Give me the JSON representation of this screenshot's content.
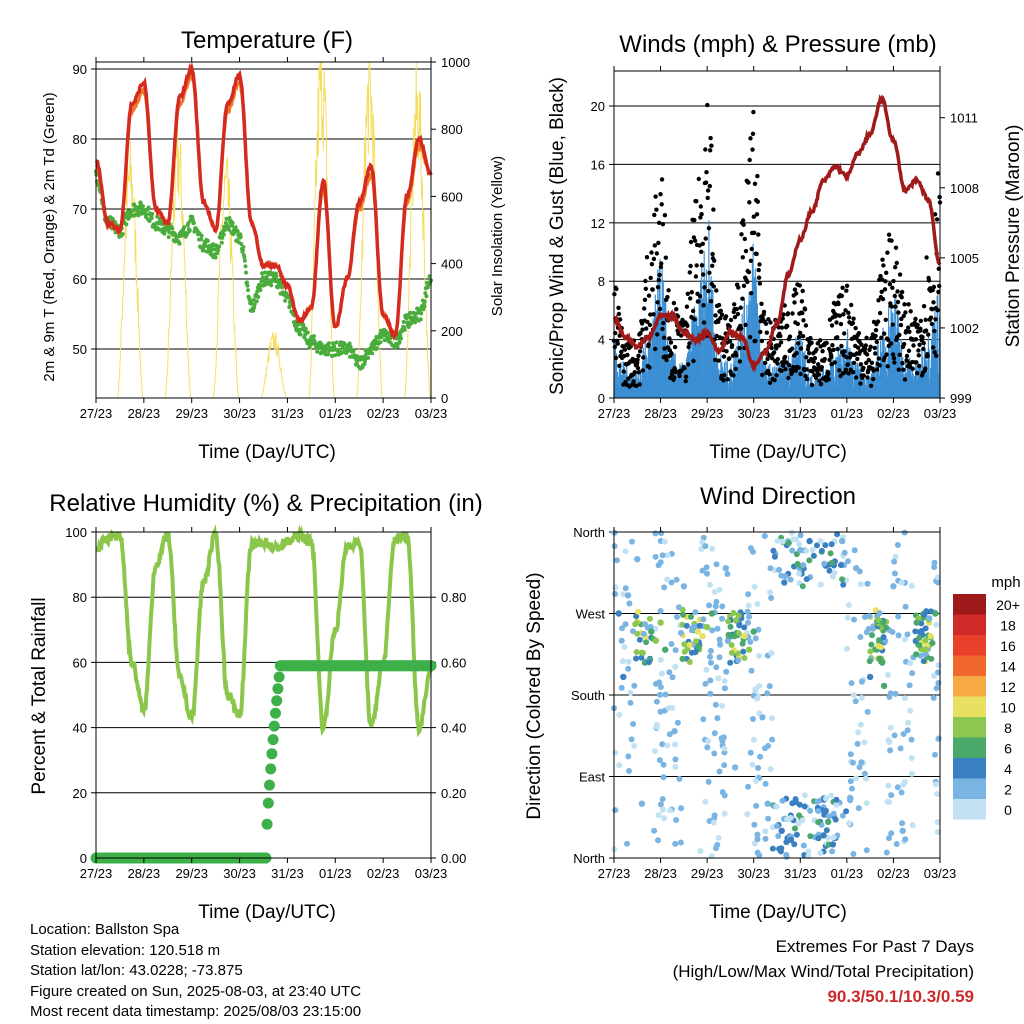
{
  "panels": {
    "temperature": {
      "title": "Temperature (F)",
      "xlabel": "Time (Day/UTC)",
      "ylabel_left": "2m & 9m T (Red, Orange) & 2m Td (Green)",
      "ylabel_right": "Solar Insolation (Yellow)"
    },
    "winds": {
      "title": "Winds (mph) & Pressure (mb)",
      "xlabel": "Time (Day/UTC)",
      "ylabel_left": "Sonic/Prop Wind & Gust (Blue, Black)",
      "ylabel_right": "Station Pressure (Maroon)"
    },
    "humidity": {
      "title": "Relative Humidity (%) & Precipitation (in)",
      "xlabel": "Time (Day/UTC)",
      "ylabel_left": "Percent & Total Rainfall"
    },
    "direction": {
      "title": "Wind Direction",
      "xlabel": "Time (Day/UTC)",
      "ylabel_left": "Direction (Colored By Speed)",
      "legend_title": "mph",
      "legend_labels": [
        "20+",
        "18",
        "16",
        "14",
        "12",
        "10",
        "8",
        "6",
        "4",
        "2",
        "0"
      ],
      "legend_colors": [
        "#9e1a1a",
        "#cf2a27",
        "#e8402a",
        "#f0682e",
        "#f7a944",
        "#e8e060",
        "#8cc850",
        "#4aa86a",
        "#3a7fc0",
        "#7ab4e2",
        "#c2e2f4"
      ]
    }
  },
  "time_ticks": [
    "27/23",
    "28/23",
    "29/23",
    "30/23",
    "31/23",
    "01/23",
    "02/23",
    "03/23"
  ],
  "info": {
    "location": "Location: Ballston Spa",
    "elevation": "Station elevation: 120.518 m",
    "latlon": "Station lat/lon: 43.0228; -73.875",
    "created": "Figure created on Sun, 2025-08-03, at 23:40 UTC",
    "recent": "Most recent data timestamp: 2025/08/03 23:15:00"
  },
  "extremes": {
    "line1": "Extremes For Past 7 Days",
    "line2": "(High/Low/Max Wind/Total Precipitation)",
    "values": "90.3/50.1/10.3/0.59"
  },
  "chart_data": [
    {
      "type": "line",
      "name": "temperature",
      "title": "Temperature (F)",
      "xlabel": "Time (Day/UTC)",
      "ylabel": "2m & 9m T (Red, Orange) & 2m Td (Green)",
      "y2label": "Solar Insolation (Yellow)",
      "x": [
        0,
        0.25,
        0.5,
        0.75,
        1,
        1.25,
        1.5,
        1.75,
        2,
        2.25,
        2.5,
        2.75,
        3,
        3.25,
        3.5,
        3.75,
        4,
        4.25,
        4.5,
        4.75,
        5,
        5.25,
        5.5,
        5.75,
        6,
        6.25,
        6.5,
        6.75,
        7
      ],
      "ylim": [
        43,
        91
      ],
      "y_ticks": [
        50,
        60,
        70,
        80,
        90
      ],
      "y2lim": [
        0,
        1000
      ],
      "y2_ticks": [
        0,
        200,
        400,
        600,
        800,
        1000
      ],
      "series": [
        {
          "name": "2m T",
          "color": "#d42a20",
          "values": [
            77,
            68,
            67,
            85,
            88,
            70,
            68,
            86,
            90,
            71,
            67,
            85,
            89,
            68,
            62,
            62,
            59,
            54,
            56,
            74,
            53,
            60,
            71,
            76,
            55,
            52,
            72,
            80,
            75
          ]
        },
        {
          "name": "9m T",
          "color": "#f07a25",
          "values": [
            76,
            68,
            67,
            84,
            87,
            70,
            68,
            85,
            89,
            71,
            67,
            84,
            88,
            68,
            62,
            62,
            59,
            54,
            56,
            73,
            53,
            60,
            70,
            75,
            55,
            52,
            71,
            79,
            75
          ]
        },
        {
          "name": "2m Td",
          "color": "#49ac3d",
          "values": [
            75,
            68,
            67,
            70,
            70,
            68,
            67,
            66,
            68,
            65,
            64,
            68,
            66,
            56,
            60,
            60,
            57,
            53,
            51,
            50,
            50,
            50,
            48,
            50,
            52,
            51,
            54,
            55,
            60
          ]
        },
        {
          "name": "Solar Insolation",
          "color": "#f5dc5a",
          "axis": "right",
          "values": [
            0,
            0,
            0,
            650,
            0,
            0,
            0,
            700,
            0,
            0,
            0,
            620,
            0,
            0,
            0,
            170,
            0,
            0,
            0,
            940,
            0,
            0,
            0,
            900,
            0,
            0,
            0,
            850,
            0
          ]
        }
      ]
    },
    {
      "type": "line",
      "name": "winds",
      "title": "Winds (mph) & Pressure (mb)",
      "xlabel": "Time (Day/UTC)",
      "ylabel": "Sonic/Prop Wind & Gust (Blue, Black)",
      "y2label": "Station Pressure (Maroon)",
      "x": [
        0,
        0.25,
        0.5,
        0.75,
        1,
        1.25,
        1.5,
        1.75,
        2,
        2.25,
        2.5,
        2.75,
        3,
        3.25,
        3.5,
        3.75,
        4,
        4.25,
        4.5,
        4.75,
        5,
        5.25,
        5.5,
        5.75,
        6,
        6.25,
        6.5,
        6.75,
        7
      ],
      "ylim": [
        0,
        22.4
      ],
      "y_ticks": [
        0,
        4,
        8,
        12,
        16,
        20
      ],
      "y2lim": [
        999,
        1013
      ],
      "y2_ticks": [
        999,
        1002,
        1005,
        1008,
        1011
      ],
      "series": [
        {
          "name": "Wind",
          "color": "#3d8fd3",
          "values": [
            2.5,
            1.5,
            1.2,
            3,
            6,
            2,
            1.5,
            4,
            8,
            2,
            1.5,
            4,
            7,
            1.5,
            1.5,
            2,
            3,
            1,
            1.2,
            2,
            3,
            1.5,
            1,
            3,
            5,
            2,
            1.5,
            3,
            5
          ]
        },
        {
          "name": "Gust",
          "color": "#000000",
          "values": [
            6,
            3,
            3,
            8,
            12,
            5,
            4,
            10,
            17,
            5,
            4,
            9,
            15,
            4,
            4,
            5,
            6,
            3,
            3,
            5,
            6,
            4,
            3,
            7,
            9,
            5,
            4,
            8,
            12
          ]
        },
        {
          "name": "Station Pressure",
          "color": "#a11a1a",
          "axis": "right",
          "values": [
            1002.4,
            1001.6,
            1001.2,
            1001.6,
            1002.5,
            1002.5,
            1001.8,
            1001.5,
            1001.8,
            1001.0,
            1001.8,
            1001.6,
            1000.4,
            1001.0,
            1002.2,
            1004.3,
            1005.8,
            1007.0,
            1008.3,
            1008.9,
            1008.5,
            1009.5,
            1010.3,
            1011.8,
            1010.0,
            1007.9,
            1008.3,
            1007.5,
            1004.7
          ]
        }
      ]
    },
    {
      "type": "line",
      "name": "humidity",
      "title": "Relative Humidity (%) & Precipitation (in)",
      "xlabel": "Time (Day/UTC)",
      "ylabel": "Percent & Total Rainfall",
      "x": [
        0,
        0.25,
        0.5,
        0.75,
        1,
        1.25,
        1.5,
        1.75,
        2,
        2.25,
        2.5,
        2.75,
        3,
        3.25,
        3.5,
        3.75,
        4,
        4.25,
        4.5,
        4.75,
        5,
        5.25,
        5.5,
        5.75,
        6,
        6.25,
        6.5,
        6.75,
        7
      ],
      "ylim": [
        0,
        100
      ],
      "y_ticks": [
        0,
        20,
        40,
        60,
        80,
        100
      ],
      "y2lim": [
        0,
        1
      ],
      "y2_ticks": [
        0.0,
        0.2,
        0.4,
        0.6,
        0.8
      ],
      "series": [
        {
          "name": "Relative Humidity",
          "color": "#8ac64a",
          "values": [
            95,
            98,
            99,
            60,
            45,
            90,
            99,
            55,
            43,
            85,
            99,
            50,
            44,
            96,
            97,
            95,
            97,
            99,
            97,
            40,
            70,
            96,
            97,
            40,
            60,
            98,
            99,
            40,
            58
          ]
        },
        {
          "name": "Total Precipitation",
          "color": "#3eb049",
          "axis": "right",
          "values": [
            0,
            0,
            0,
            0,
            0,
            0,
            0,
            0,
            0,
            0,
            0,
            0,
            0,
            0,
            0.5,
            0.59,
            0.59,
            0.59,
            0.59,
            0.59,
            0.59,
            0.59,
            0.59,
            0.59,
            0.59,
            0.59,
            0.59,
            0.59,
            0.59
          ]
        }
      ]
    },
    {
      "type": "scatter",
      "name": "direction",
      "title": "Wind Direction",
      "xlabel": "Time (Day/UTC)",
      "ylabel": "Direction (Colored By Speed)",
      "y_ticks": [
        "North",
        "East",
        "South",
        "West",
        "North"
      ],
      "ylim": [
        0,
        360
      ],
      "color_scale": {
        "label": "mph",
        "values": [
          0,
          2,
          4,
          6,
          8,
          10,
          12,
          14,
          16,
          18,
          20
        ]
      },
      "points": [
        [
          0.1,
          270,
          4
        ],
        [
          0.2,
          200,
          3
        ],
        [
          0.3,
          290,
          2
        ],
        [
          0.5,
          330,
          1
        ],
        [
          0.6,
          60,
          1
        ],
        [
          0.8,
          250,
          6
        ],
        [
          0.9,
          240,
          7
        ],
        [
          1.0,
          260,
          8
        ],
        [
          1.1,
          230,
          5
        ],
        [
          1.3,
          140,
          2
        ],
        [
          1.5,
          300,
          1
        ],
        [
          1.8,
          250,
          9
        ],
        [
          1.9,
          245,
          10
        ],
        [
          2.0,
          255,
          8
        ],
        [
          2.1,
          270,
          6
        ],
        [
          2.4,
          320,
          2
        ],
        [
          2.6,
          100,
          1
        ],
        [
          2.8,
          245,
          10
        ],
        [
          2.9,
          230,
          8
        ],
        [
          3.0,
          250,
          6
        ],
        [
          3.3,
          60,
          1
        ],
        [
          3.6,
          30,
          3
        ],
        [
          3.8,
          20,
          4
        ],
        [
          4.0,
          340,
          2
        ],
        [
          4.2,
          350,
          3
        ],
        [
          4.5,
          25,
          4
        ],
        [
          4.6,
          40,
          5
        ],
        [
          4.7,
          15,
          3
        ],
        [
          4.9,
          350,
          2
        ],
        [
          5.2,
          320,
          1
        ],
        [
          5.5,
          200,
          3
        ],
        [
          5.7,
          220,
          5
        ],
        [
          5.8,
          190,
          6
        ],
        [
          6.0,
          300,
          1
        ],
        [
          6.2,
          30,
          2
        ],
        [
          6.5,
          260,
          6
        ],
        [
          6.7,
          230,
          8
        ],
        [
          6.8,
          245,
          9
        ],
        [
          6.9,
          270,
          6
        ]
      ]
    }
  ]
}
